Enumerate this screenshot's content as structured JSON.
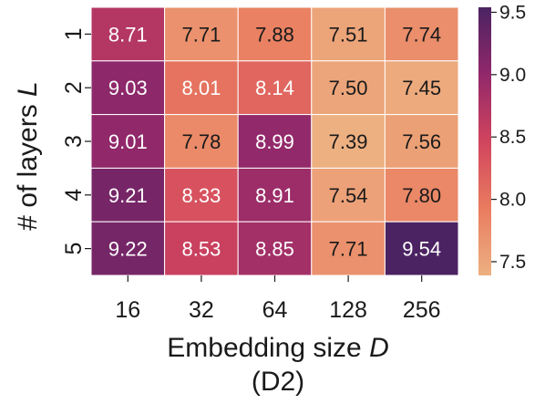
{
  "chart_data": {
    "type": "heatmap",
    "x": {
      "label_prefix": "Embedding size ",
      "label_var": "D",
      "categories": [
        "16",
        "32",
        "64",
        "128",
        "256"
      ]
    },
    "y": {
      "label_prefix": "# of layers ",
      "label_var": "L",
      "categories": [
        "1",
        "2",
        "3",
        "4",
        "5"
      ]
    },
    "subtitle": "(D2)",
    "values": [
      [
        8.71,
        7.71,
        7.88,
        7.51,
        7.74
      ],
      [
        9.03,
        8.01,
        8.14,
        7.5,
        7.45
      ],
      [
        9.01,
        7.78,
        8.99,
        7.39,
        7.56
      ],
      [
        9.21,
        8.33,
        8.91,
        7.54,
        7.8
      ],
      [
        9.22,
        8.53,
        8.85,
        7.71,
        9.54
      ]
    ],
    "colormap": "flare",
    "colorbar": {
      "range": [
        7.39,
        9.54
      ],
      "ticks": [
        "7.5",
        "8.0",
        "8.5",
        "9.0",
        "9.5"
      ]
    },
    "colors": {
      "low": "#edb081",
      "high": "#4b2362"
    },
    "grid": false
  }
}
